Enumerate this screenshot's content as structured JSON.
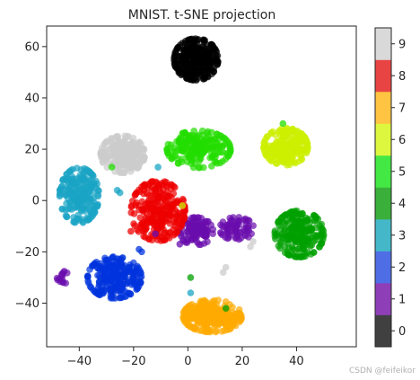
{
  "chart_data": {
    "type": "scatter",
    "title": "MNIST. t-SNE projection",
    "xlabel": "",
    "ylabel": "",
    "xlim": [
      -52,
      62
    ],
    "ylim": [
      -57,
      68
    ],
    "xticks": [
      -40,
      -20,
      0,
      20,
      40
    ],
    "yticks": [
      -40,
      -20,
      0,
      20,
      40,
      60
    ],
    "grid": false,
    "colorbar": {
      "ticks": [
        0,
        1,
        2,
        3,
        4,
        5,
        6,
        7,
        8,
        9
      ],
      "colors": [
        "#404040",
        "#8e3fb7",
        "#4f6ee6",
        "#44b8c8",
        "#3aaf3a",
        "#44e844",
        "#ddf73e",
        "#ffc441",
        "#e84444",
        "#d9d9d9"
      ]
    },
    "clusters": [
      {
        "digit": 0,
        "color": "#000000",
        "center": [
          3,
          55
        ],
        "spread": [
          4.5,
          4.5
        ],
        "count": 300
      },
      {
        "digit": 1,
        "color": "#6a0dad",
        "center": [
          3,
          -12
        ],
        "spread": [
          3.5,
          3
        ],
        "count": 110
      },
      {
        "digit": 1,
        "color": "#6a0dad",
        "center": [
          18,
          -11
        ],
        "spread": [
          3.5,
          2.5
        ],
        "count": 70
      },
      {
        "digit": 1,
        "color": "#6a0dad",
        "center": [
          -46,
          -30
        ],
        "spread": [
          1.2,
          1.4
        ],
        "count": 14
      },
      {
        "digit": 2,
        "color": "#0033dd",
        "center": [
          -27,
          -30
        ],
        "spread": [
          5.5,
          4.5
        ],
        "count": 250
      },
      {
        "digit": 3,
        "color": "#1aa4c4",
        "center": [
          -40,
          2
        ],
        "spread": [
          4,
          6
        ],
        "count": 220
      },
      {
        "digit": 4,
        "color": "#00a000",
        "center": [
          41,
          -13
        ],
        "spread": [
          5,
          5
        ],
        "count": 220
      },
      {
        "digit": 5,
        "color": "#22dd00",
        "center": [
          4,
          20
        ],
        "spread": [
          6.5,
          4
        ],
        "count": 200
      },
      {
        "digit": 6,
        "color": "#ccf000",
        "center": [
          36,
          21
        ],
        "spread": [
          4.5,
          4
        ],
        "count": 220
      },
      {
        "digit": 7,
        "color": "#ffaa00",
        "center": [
          9,
          -45
        ],
        "spread": [
          6,
          3.5
        ],
        "count": 260
      },
      {
        "digit": 8,
        "color": "#ee0000",
        "center": [
          -11,
          -4
        ],
        "spread": [
          5.5,
          6.5
        ],
        "count": 260
      },
      {
        "digit": 9,
        "color": "#cccccc",
        "center": [
          -24,
          18
        ],
        "spread": [
          4.5,
          4
        ],
        "count": 220
      }
    ],
    "outliers": [
      {
        "x": -28,
        "y": 13,
        "color": "#22dd00"
      },
      {
        "x": -26,
        "y": 4,
        "color": "#1aa4c4"
      },
      {
        "x": -25,
        "y": 3,
        "color": "#1aa4c4"
      },
      {
        "x": -18,
        "y": -19,
        "color": "#0033dd"
      },
      {
        "x": -17,
        "y": -20,
        "color": "#0033dd"
      },
      {
        "x": -21,
        "y": -12,
        "color": "#ee0000"
      },
      {
        "x": -11,
        "y": 13,
        "color": "#1aa4c4"
      },
      {
        "x": 1,
        "y": -30,
        "color": "#00a000"
      },
      {
        "x": 1,
        "y": -36,
        "color": "#1aa4c4"
      },
      {
        "x": -3,
        "y": -17,
        "color": "#6a0dad"
      },
      {
        "x": -12,
        "y": -13,
        "color": "#6a0dad"
      },
      {
        "x": -2,
        "y": -2,
        "color": "#ccf000"
      },
      {
        "x": 13,
        "y": -28,
        "color": "#cccccc"
      },
      {
        "x": 14,
        "y": -26,
        "color": "#cccccc"
      },
      {
        "x": 24,
        "y": -16,
        "color": "#cccccc"
      },
      {
        "x": 23,
        "y": -18,
        "color": "#cccccc"
      },
      {
        "x": 35,
        "y": 30,
        "color": "#22dd00"
      },
      {
        "x": 14,
        "y": -42,
        "color": "#00a000"
      }
    ]
  },
  "watermark": "CSDN @feifeikor"
}
